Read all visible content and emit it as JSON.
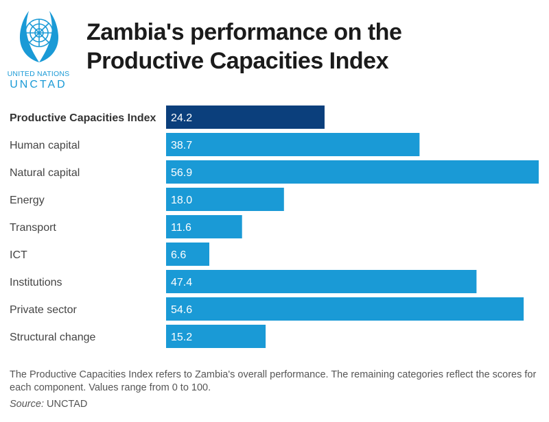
{
  "header": {
    "logo_line1": "UNITED NATIONS",
    "logo_line2": "UNCTAD",
    "logo_icon": "un-emblem-icon",
    "title_line1": "Zambia's performance on the",
    "title_line2": "Productive Capacities Index"
  },
  "chart_data": {
    "type": "bar",
    "orientation": "horizontal",
    "title": "Zambia's performance on the Productive Capacities Index",
    "categories": [
      "Productive Capacities Index",
      "Human capital",
      "Natural capital",
      "Energy",
      "Transport",
      "ICT",
      "Institutions",
      "Private sector",
      "Structural change"
    ],
    "values": [
      24.2,
      38.7,
      56.9,
      18.0,
      11.6,
      6.6,
      47.4,
      54.6,
      15.2
    ],
    "value_labels": [
      "24.2",
      "38.7",
      "56.9",
      "18.0",
      "11.6",
      "6.6",
      "47.4",
      "54.6",
      "15.2"
    ],
    "highlight_index": 0,
    "xlim": [
      0,
      57
    ],
    "grid": false,
    "colors": {
      "highlight": "#0b3f7c",
      "bar": "#1a9ad6",
      "label_text": "#ffffff"
    }
  },
  "footer": {
    "note": "The Productive Capacities Index refers to Zambia's overall performance. The remaining categories reflect the scores for each component. Values range from 0 to 100.",
    "source_label": "Source:",
    "source_value": "UNCTAD"
  }
}
